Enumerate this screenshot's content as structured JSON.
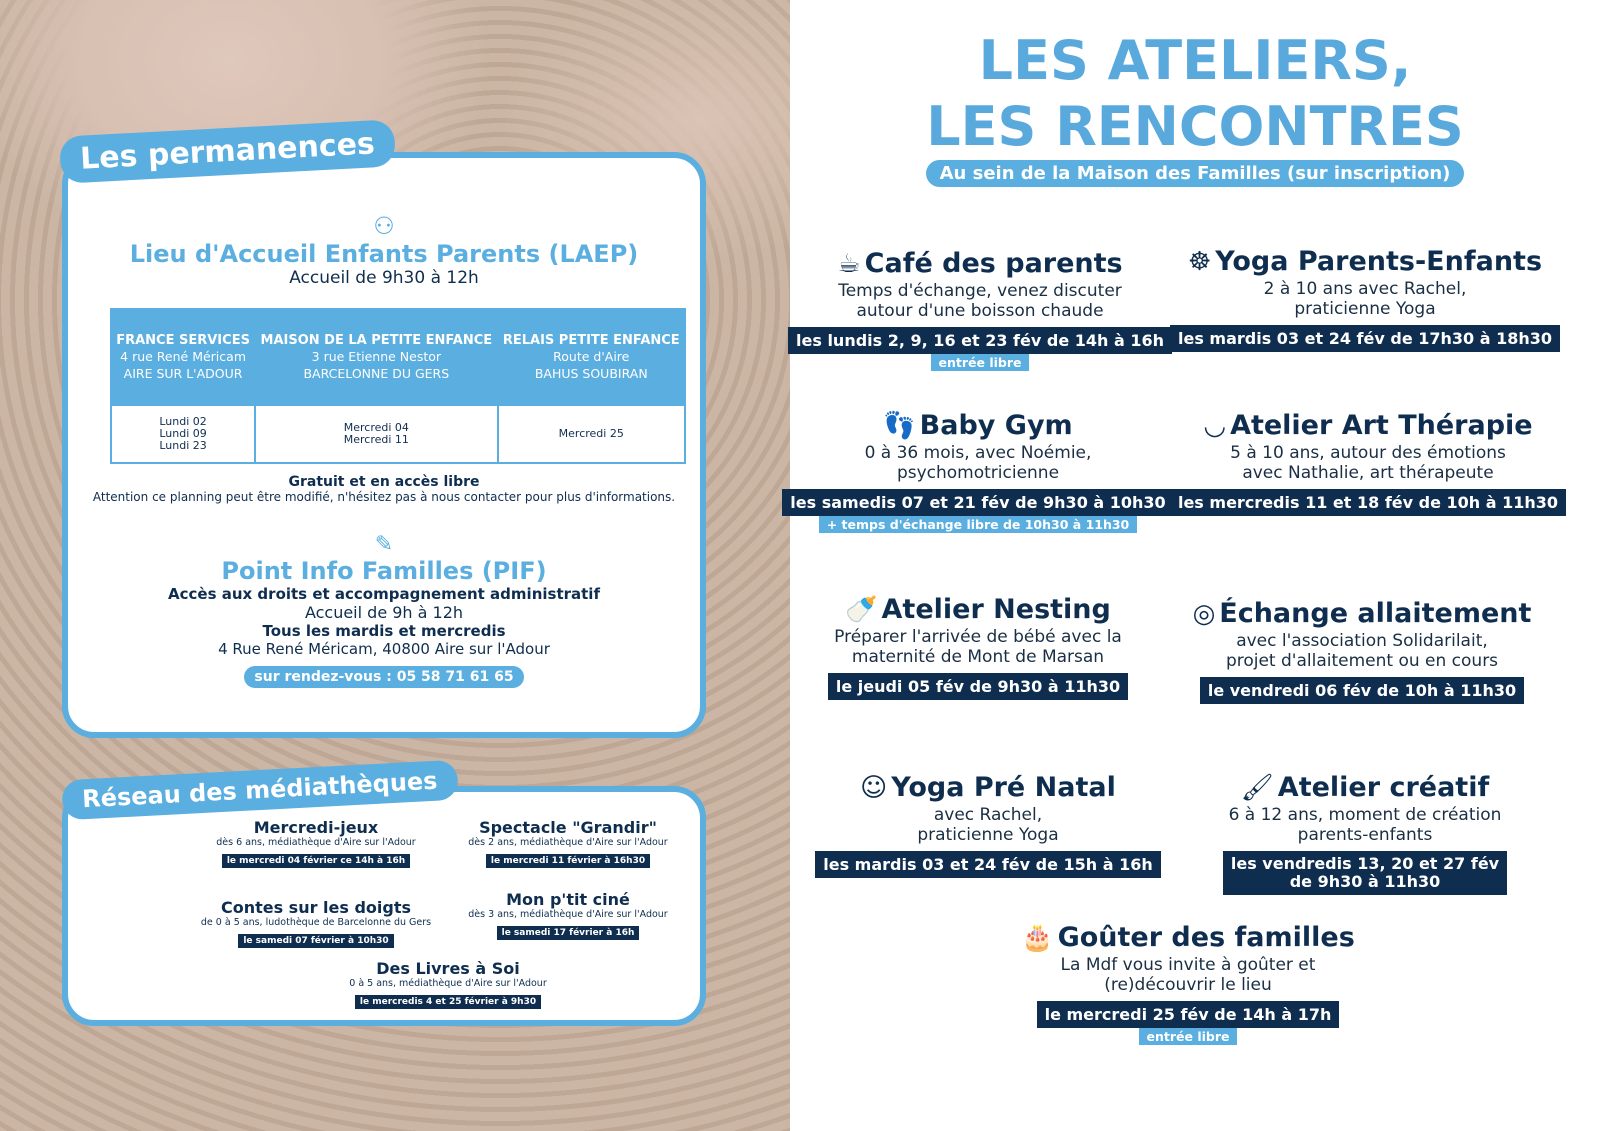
{
  "right": {
    "title_line1": "LES ATELIERS,",
    "title_line2": "LES RENCONTRES",
    "subtitle": "Au sein de la Maison des Familles (sur inscription)",
    "ateliers": [
      {
        "icon": "coffee-cup-icon",
        "title": "Café des parents",
        "desc": [
          "Temps d'échange, venez discuter",
          "autour d'une boisson chaude"
        ],
        "date": [
          "les lundis 2, 9, 16 et 23 fév de 14h à 16h"
        ],
        "extra": "entrée libre"
      },
      {
        "icon": "yoga-icon",
        "title": "Yoga Parents-Enfants",
        "desc": [
          "2 à 10 ans avec Rachel,",
          "praticienne Yoga"
        ],
        "date": [
          "les mardis 03 et 24 fév de 17h30 à 18h30"
        ]
      },
      {
        "icon": "footprints-icon",
        "title": "Baby Gym",
        "desc": [
          "0 à 36 mois, avec Noémie,",
          "psychomotricienne"
        ],
        "date": [
          "les samedis 07 et 21 fév de 9h30 à 10h30"
        ],
        "extra": "+ temps d'échange libre de 10h30 à 11h30"
      },
      {
        "icon": "smile-icon",
        "title": "Atelier Art Thérapie",
        "desc": [
          "5 à 10 ans, autour des émotions",
          "avec Nathalie, art thérapeute"
        ],
        "date": [
          "les mercredis 11 et 18 fév de 10h à 11h30"
        ]
      },
      {
        "icon": "baby-bottle-icon",
        "title": "Atelier Nesting",
        "desc": [
          "Préparer l'arrivée de bébé avec la",
          "maternité de Mont de Marsan"
        ],
        "date": [
          "le jeudi 05 fév de 9h30 à 11h30"
        ]
      },
      {
        "icon": "breastfeeding-icon",
        "title": "Échange allaitement",
        "desc": [
          "avec l'association Solidarilait,",
          "projet d'allaitement ou en cours"
        ],
        "date": [
          "le vendredi 06 fév de 10h à 11h30"
        ]
      },
      {
        "icon": "meditation-icon",
        "title": "Yoga Pré Natal",
        "desc": [
          "avec Rachel,",
          "praticienne Yoga"
        ],
        "date": [
          "les mardis 03 et 24 fév de 15h à 16h"
        ]
      },
      {
        "icon": "paint-brush-icon",
        "title": "Atelier créatif",
        "desc": [
          "6 à 12 ans, moment de création",
          "parents-enfants"
        ],
        "date": [
          "les vendredis 13, 20 et 27 fév",
          "de 9h30 à 11h30"
        ]
      },
      {
        "icon": "cake-icon",
        "title": "Goûter des familles",
        "desc": [
          "La Mdf vous invite à goûter et",
          "(re)découvrir le lieu"
        ],
        "date": [
          "le mercredi 25 fév de 14h à 17h"
        ],
        "extra": "entrée libre"
      }
    ]
  },
  "permanences": {
    "tab": "Les permanences",
    "laep": {
      "title": "Lieu d'Accueil Enfants Parents (LAEP)",
      "hours": "Accueil de 9h30 à 12h",
      "columns": [
        {
          "name": "FRANCE SERVICES",
          "addr1": "4 rue René Méricam",
          "addr2": "AIRE SUR L'ADOUR",
          "dates": [
            "Lundi 02",
            "Lundi 09",
            "Lundi 23"
          ]
        },
        {
          "name": "MAISON DE LA PETITE ENFANCE",
          "addr1": "3 rue Etienne Nestor",
          "addr2": "BARCELONNE DU GERS",
          "dates": [
            "Mercredi 04",
            "Mercredi 11"
          ]
        },
        {
          "name": "RELAIS PETITE ENFANCE",
          "addr1": "Route d'Aire",
          "addr2": "BAHUS SOUBIRAN",
          "dates": [
            "Mercredi 25"
          ]
        }
      ],
      "free": "Gratuit et en accès libre",
      "note": "Attention ce planning peut être modifié, n'hésitez pas à nous contacter pour plus d'informations."
    },
    "pif": {
      "title": "Point Info Familles (PIF)",
      "line1": "Accès aux droits et accompagnement administratif",
      "line2": "Accueil de 9h à 12h",
      "line3": "Tous les mardis et mercredis",
      "line4": "4 Rue René Méricam, 40800 Aire sur l'Adour",
      "rdv": "sur rendez-vous : 05 58 71 61 65"
    }
  },
  "mediatheques": {
    "tab": "Réseau des médiathèques",
    "events": [
      {
        "title": "Mercredi-jeux",
        "sub": "dès 6 ans, médiathèque d'Aire sur l'Adour",
        "date": "le mercredi 04 février ce 14h à 16h"
      },
      {
        "title": "Spectacle \"Grandir\"",
        "sub": "dès 2 ans, médiathèque d'Aire sur l'Adour",
        "date": "le mercredi 11 février à 16h30"
      },
      {
        "title": "Contes sur les doigts",
        "sub": "de 0 à 5 ans, ludothèque de Barcelonne du Gers",
        "date": "le samedi 07 février à 10h30"
      },
      {
        "title": "Mon p'tit ciné",
        "sub": "dès 3 ans, médiathèque d'Aire sur l'Adour",
        "date": "le samedi 17 février à 16h"
      },
      {
        "title": "Des Livres à Soi",
        "sub": "0 à 5 ans, médiathèque d'Aire sur l'Adour",
        "date": "le mercredis 4 et 25 février à 9h30"
      }
    ]
  },
  "colors": {
    "light_blue": "#5aaee0",
    "navy": "#0f2e4f"
  }
}
